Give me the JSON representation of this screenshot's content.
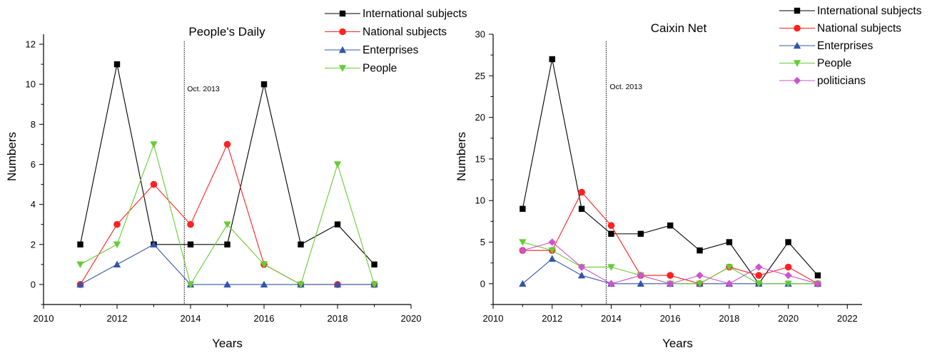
{
  "chart_data": [
    {
      "type": "line",
      "title": "People's Daily",
      "xlabel": "Years",
      "ylabel": "Numbers",
      "xlim": [
        2010,
        2020
      ],
      "ylim": [
        -1,
        12.5
      ],
      "xticks": [
        2010,
        2012,
        2014,
        2016,
        2018,
        2020
      ],
      "yticks": [
        0,
        2,
        4,
        6,
        8,
        10,
        12
      ],
      "grid": false,
      "legend_position": "top-right, outside plot",
      "annotation": {
        "label": "Oct. 2013",
        "x": 2013.83
      },
      "x": [
        2011,
        2012,
        2013,
        2014,
        2015,
        2016,
        2017,
        2018,
        2019
      ],
      "series": [
        {
          "name": "International subjects",
          "color": "#000000",
          "marker": "square",
          "values": [
            2,
            11,
            2,
            2,
            2,
            10,
            2,
            3,
            1
          ]
        },
        {
          "name": "National subjects",
          "color": "#ff2020",
          "marker": "circle",
          "values": [
            0,
            3,
            5,
            3,
            7,
            1,
            0,
            0,
            0
          ]
        },
        {
          "name": "Enterprises",
          "color": "#3355aa",
          "marker": "triangle-up",
          "values": [
            0,
            1,
            2,
            0,
            0,
            0,
            0,
            0,
            0
          ]
        },
        {
          "name": "People",
          "color": "#66cc33",
          "marker": "triangle-down",
          "values": [
            1,
            2,
            7,
            0,
            3,
            1,
            0,
            6,
            0
          ]
        }
      ]
    },
    {
      "type": "line",
      "title": "Caixin Net",
      "xlabel": "Years",
      "ylabel": "Numbers",
      "xlim": [
        2010,
        2022.5
      ],
      "ylim": [
        -2.5,
        30
      ],
      "xticks": [
        2010,
        2012,
        2014,
        2016,
        2018,
        2020,
        2022
      ],
      "yticks": [
        0,
        5,
        10,
        15,
        20,
        25,
        30
      ],
      "grid": false,
      "legend_position": "top-right, outside plot",
      "annotation": {
        "label": "Oct. 2013",
        "x": 2013.83
      },
      "x": [
        2011,
        2012,
        2013,
        2014,
        2015,
        2016,
        2017,
        2018,
        2019,
        2020,
        2021
      ],
      "series": [
        {
          "name": "International subjects",
          "color": "#000000",
          "marker": "square",
          "values": [
            9,
            27,
            9,
            6,
            6,
            7,
            4,
            5,
            0,
            5,
            1
          ]
        },
        {
          "name": "National subjects",
          "color": "#ff2020",
          "marker": "circle",
          "values": [
            4,
            4,
            11,
            7,
            1,
            1,
            0,
            2,
            1,
            2,
            0
          ]
        },
        {
          "name": "Enterprises",
          "color": "#3355aa",
          "marker": "triangle-up",
          "values": [
            0,
            3,
            1,
            0,
            0,
            0,
            0,
            0,
            0,
            0,
            0
          ]
        },
        {
          "name": "People",
          "color": "#66cc33",
          "marker": "triangle-down",
          "values": [
            5,
            4,
            2,
            2,
            1,
            0,
            0,
            2,
            0,
            0,
            0
          ]
        },
        {
          "name": "politicians",
          "color": "#cc55cc",
          "marker": "diamond",
          "values": [
            4,
            5,
            2,
            0,
            1,
            0,
            1,
            0,
            2,
            1,
            0
          ]
        }
      ]
    }
  ]
}
